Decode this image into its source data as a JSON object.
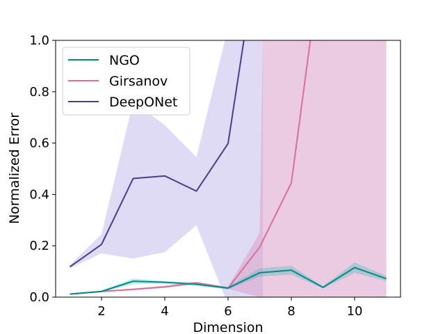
{
  "chart_data": {
    "type": "line",
    "title": "",
    "xlabel": "Dimension",
    "ylabel": "Normalized Error",
    "xlim": [
      0.55,
      11.45
    ],
    "ylim": [
      0,
      1.0
    ],
    "xticks": [
      2,
      4,
      6,
      8,
      10
    ],
    "xtick_labels": [
      "2",
      "4",
      "6",
      "8",
      "10"
    ],
    "yticks": [
      0.0,
      0.2,
      0.4,
      0.6,
      0.8,
      1.0
    ],
    "ytick_labels": [
      "0.0",
      "0.2",
      "0.4",
      "0.6",
      "0.8",
      "1.0"
    ],
    "grid": false,
    "legend_position": "top-left",
    "series": [
      {
        "name": "NGO",
        "color": "#008b8b",
        "x": [
          1,
          2,
          3,
          4,
          5,
          6,
          7,
          8,
          9,
          10,
          11
        ],
        "y": [
          0.012,
          0.022,
          0.062,
          0.058,
          0.05,
          0.035,
          0.095,
          0.105,
          0.038,
          0.115,
          0.072
        ],
        "band_lower": [
          0.01,
          0.02,
          0.05,
          0.052,
          0.043,
          0.031,
          0.08,
          0.088,
          0.034,
          0.095,
          0.062
        ],
        "band_upper": [
          0.014,
          0.026,
          0.072,
          0.062,
          0.058,
          0.04,
          0.112,
          0.122,
          0.042,
          0.135,
          0.083
        ]
      },
      {
        "name": "Girsanov",
        "color": "#dc6e94",
        "x": [
          1,
          2,
          3,
          4,
          5,
          6,
          7,
          8,
          8.6
        ],
        "y": [
          0.012,
          0.022,
          0.03,
          0.04,
          0.055,
          0.035,
          0.195,
          0.445,
          1.0
        ],
        "band_x": [
          1,
          2,
          3,
          4,
          5,
          6,
          7,
          7.1,
          11
        ],
        "band_lower": [
          0.01,
          0.02,
          0.027,
          0.036,
          0.05,
          0.032,
          0.0,
          0.0,
          0.0
        ],
        "band_upper": [
          0.014,
          0.025,
          0.034,
          0.044,
          0.06,
          0.04,
          0.25,
          1.0,
          1.0
        ]
      },
      {
        "name": "DeepONet",
        "color": "#483d8b",
        "x": [
          1,
          2,
          3,
          4,
          5,
          6,
          6.5
        ],
        "y": [
          0.118,
          0.205,
          0.462,
          0.472,
          0.413,
          0.598,
          1.0
        ],
        "band_x": [
          1,
          2,
          3,
          4,
          5,
          5.9,
          6.5,
          7.0,
          7.1
        ],
        "band_lower": [
          0.112,
          0.17,
          0.15,
          0.175,
          0.28,
          0.0,
          0.0,
          0.0,
          0.0
        ],
        "band_upper": [
          0.125,
          0.245,
          0.76,
          0.67,
          0.545,
          1.0,
          1.0,
          1.0,
          1.0
        ]
      }
    ]
  }
}
